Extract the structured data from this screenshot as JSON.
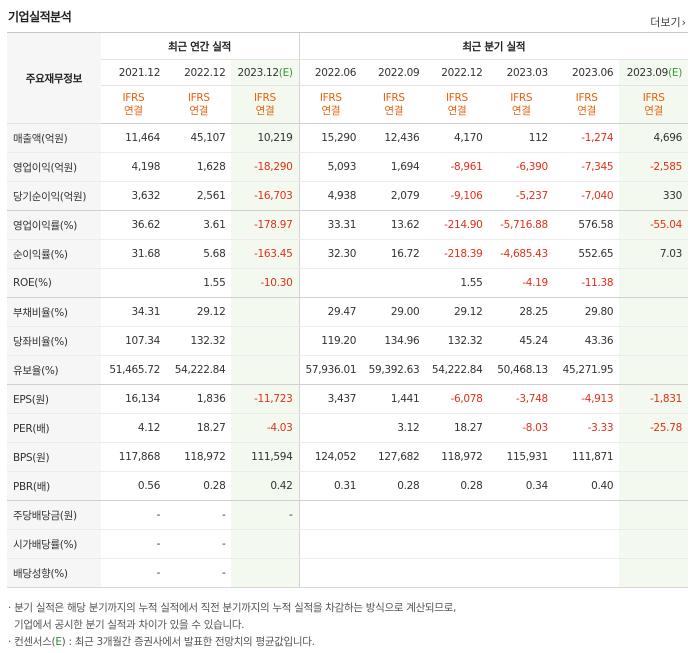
{
  "section_title": "기업실적분석",
  "more_label": "더보기",
  "row_header_label": "주요재무정보",
  "group_annual": "최근 연간 실적",
  "group_quarter": "최근 분기 실적",
  "periods": [
    {
      "label": "2021.12",
      "est": false
    },
    {
      "label": "2022.12",
      "est": false
    },
    {
      "label": "2023.12",
      "est": true
    },
    {
      "label": "2022.06",
      "est": false
    },
    {
      "label": "2022.09",
      "est": false
    },
    {
      "label": "2022.12",
      "est": false
    },
    {
      "label": "2023.03",
      "est": false
    },
    {
      "label": "2023.06",
      "est": false
    },
    {
      "label": "2023.09",
      "est": true
    }
  ],
  "est_mark": "(E)",
  "ifrs_line1": "IFRS",
  "ifrs_line2": "연결",
  "rows": [
    {
      "label": "매출액(억원)",
      "values": [
        "11,464",
        "45,107",
        "10,219",
        "15,290",
        "12,436",
        "4,170",
        "112",
        "-1,274",
        "4,696"
      ]
    },
    {
      "label": "영업이익(억원)",
      "values": [
        "4,198",
        "1,628",
        "-18,290",
        "5,093",
        "1,694",
        "-8,961",
        "-6,390",
        "-7,345",
        "-2,585"
      ]
    },
    {
      "label": "당기순이익(억원)",
      "values": [
        "3,632",
        "2,561",
        "-16,703",
        "4,938",
        "2,079",
        "-9,106",
        "-5,237",
        "-7,040",
        "330"
      ],
      "grp": true
    },
    {
      "label": "영업이익률(%)",
      "values": [
        "36.62",
        "3.61",
        "-178.97",
        "33.31",
        "13.62",
        "-214.90",
        "-5,716.88",
        "576.58",
        "-55.04"
      ]
    },
    {
      "label": "순이익률(%)",
      "values": [
        "31.68",
        "5.68",
        "-163.45",
        "32.30",
        "16.72",
        "-218.39",
        "-4,685.43",
        "552.65",
        "7.03"
      ]
    },
    {
      "label": "ROE(%)",
      "values": [
        "",
        "1.55",
        "-10.30",
        "",
        "",
        "1.55",
        "-4.19",
        "-11.38",
        ""
      ],
      "grp": true
    },
    {
      "label": "부채비율(%)",
      "values": [
        "34.31",
        "29.12",
        "",
        "29.47",
        "29.00",
        "29.12",
        "28.25",
        "29.80",
        ""
      ]
    },
    {
      "label": "당좌비율(%)",
      "values": [
        "107.34",
        "132.32",
        "",
        "119.20",
        "134.96",
        "132.32",
        "45.24",
        "43.36",
        ""
      ]
    },
    {
      "label": "유보율(%)",
      "values": [
        "51,465.72",
        "54,222.84",
        "",
        "57,936.01",
        "59,392.63",
        "54,222.84",
        "50,468.13",
        "45,271.95",
        ""
      ],
      "grp": true
    },
    {
      "label": "EPS(원)",
      "values": [
        "16,134",
        "1,836",
        "-11,723",
        "3,437",
        "1,441",
        "-6,078",
        "-3,748",
        "-4,913",
        "-1,831"
      ]
    },
    {
      "label": "PER(배)",
      "values": [
        "4.12",
        "18.27",
        "-4.03",
        "",
        "3.12",
        "18.27",
        "-8.03",
        "-3.33",
        "-25.78"
      ]
    },
    {
      "label": "BPS(원)",
      "values": [
        "117,868",
        "118,972",
        "111,594",
        "124,052",
        "127,682",
        "118,972",
        "115,931",
        "111,871",
        ""
      ]
    },
    {
      "label": "PBR(배)",
      "values": [
        "0.56",
        "0.28",
        "0.42",
        "0.31",
        "0.28",
        "0.28",
        "0.34",
        "0.40",
        ""
      ],
      "grp": true
    },
    {
      "label": "주당배당금(원)",
      "values": [
        "-",
        "-",
        "-",
        "",
        "",
        "",
        "",
        "",
        ""
      ]
    },
    {
      "label": "시가배당률(%)",
      "values": [
        "-",
        "-",
        "",
        "",
        "",
        "",
        "",
        "",
        ""
      ]
    },
    {
      "label": "배당성향(%)",
      "values": [
        "-",
        "-",
        "",
        "",
        "",
        "",
        "",
        "",
        ""
      ]
    }
  ],
  "notes": {
    "line1": "· 분기 실적은 해당 분기까지의 누적 실적에서 직전 분기까지의 누적 실적을 차감하는 방식으로 계산되므로,",
    "line2": "  기업에서 공시한 분기 실적과 차이가 있을 수 있습니다.",
    "line3_pre": "· 컨센서스(",
    "line3_e": "E",
    "line3_post": ") : 최근 3개월간 증권사에서 발표한 전망치의 평균값입니다."
  }
}
